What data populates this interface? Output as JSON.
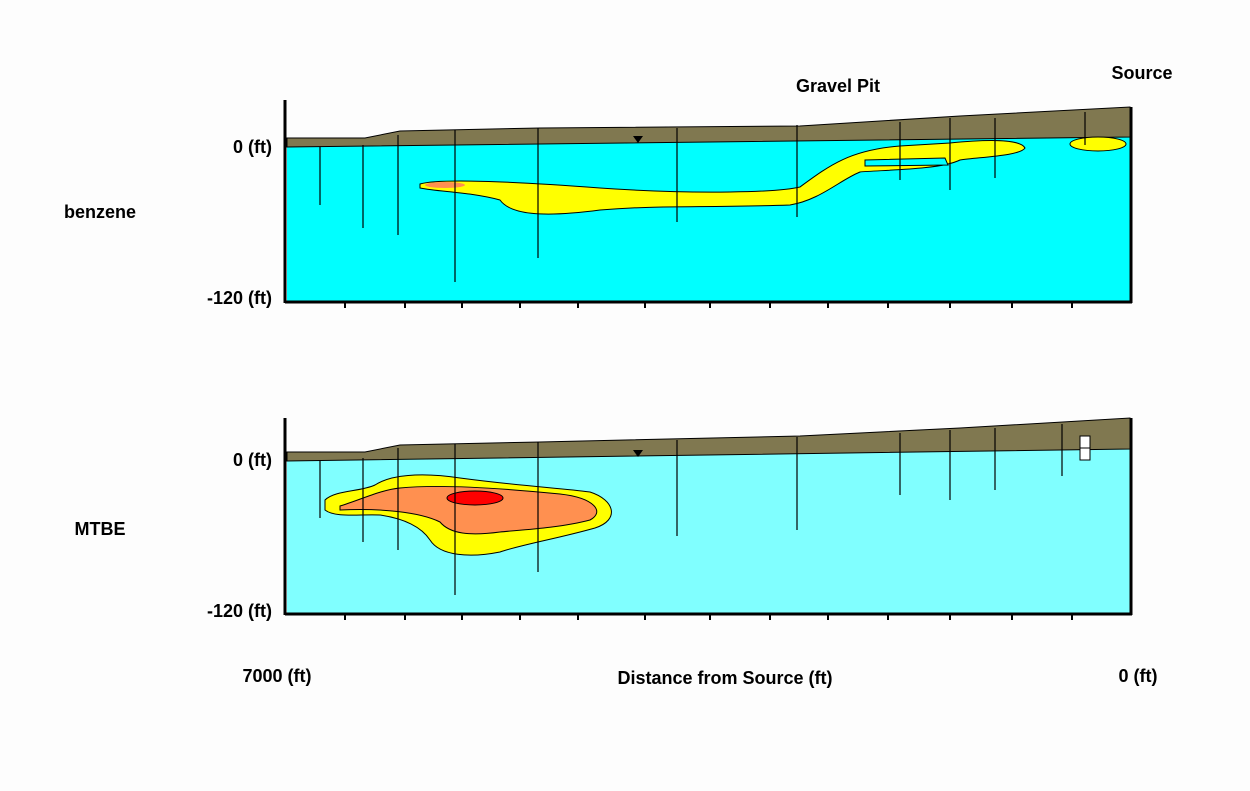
{
  "labels": {
    "gravel_pit": "Gravel Pit",
    "source": "Source"
  },
  "panels": [
    {
      "name": "benzene",
      "top_label": "0 (ft)",
      "bottom_label": "-120 (ft)"
    },
    {
      "name": "MTBE",
      "top_label": "0 (ft)",
      "bottom_label": "-120 (ft)"
    }
  ],
  "x_axis": {
    "left_label": "7000 (ft)",
    "title": "Distance from Source (ft)",
    "right_label": "0 (ft)"
  }
}
